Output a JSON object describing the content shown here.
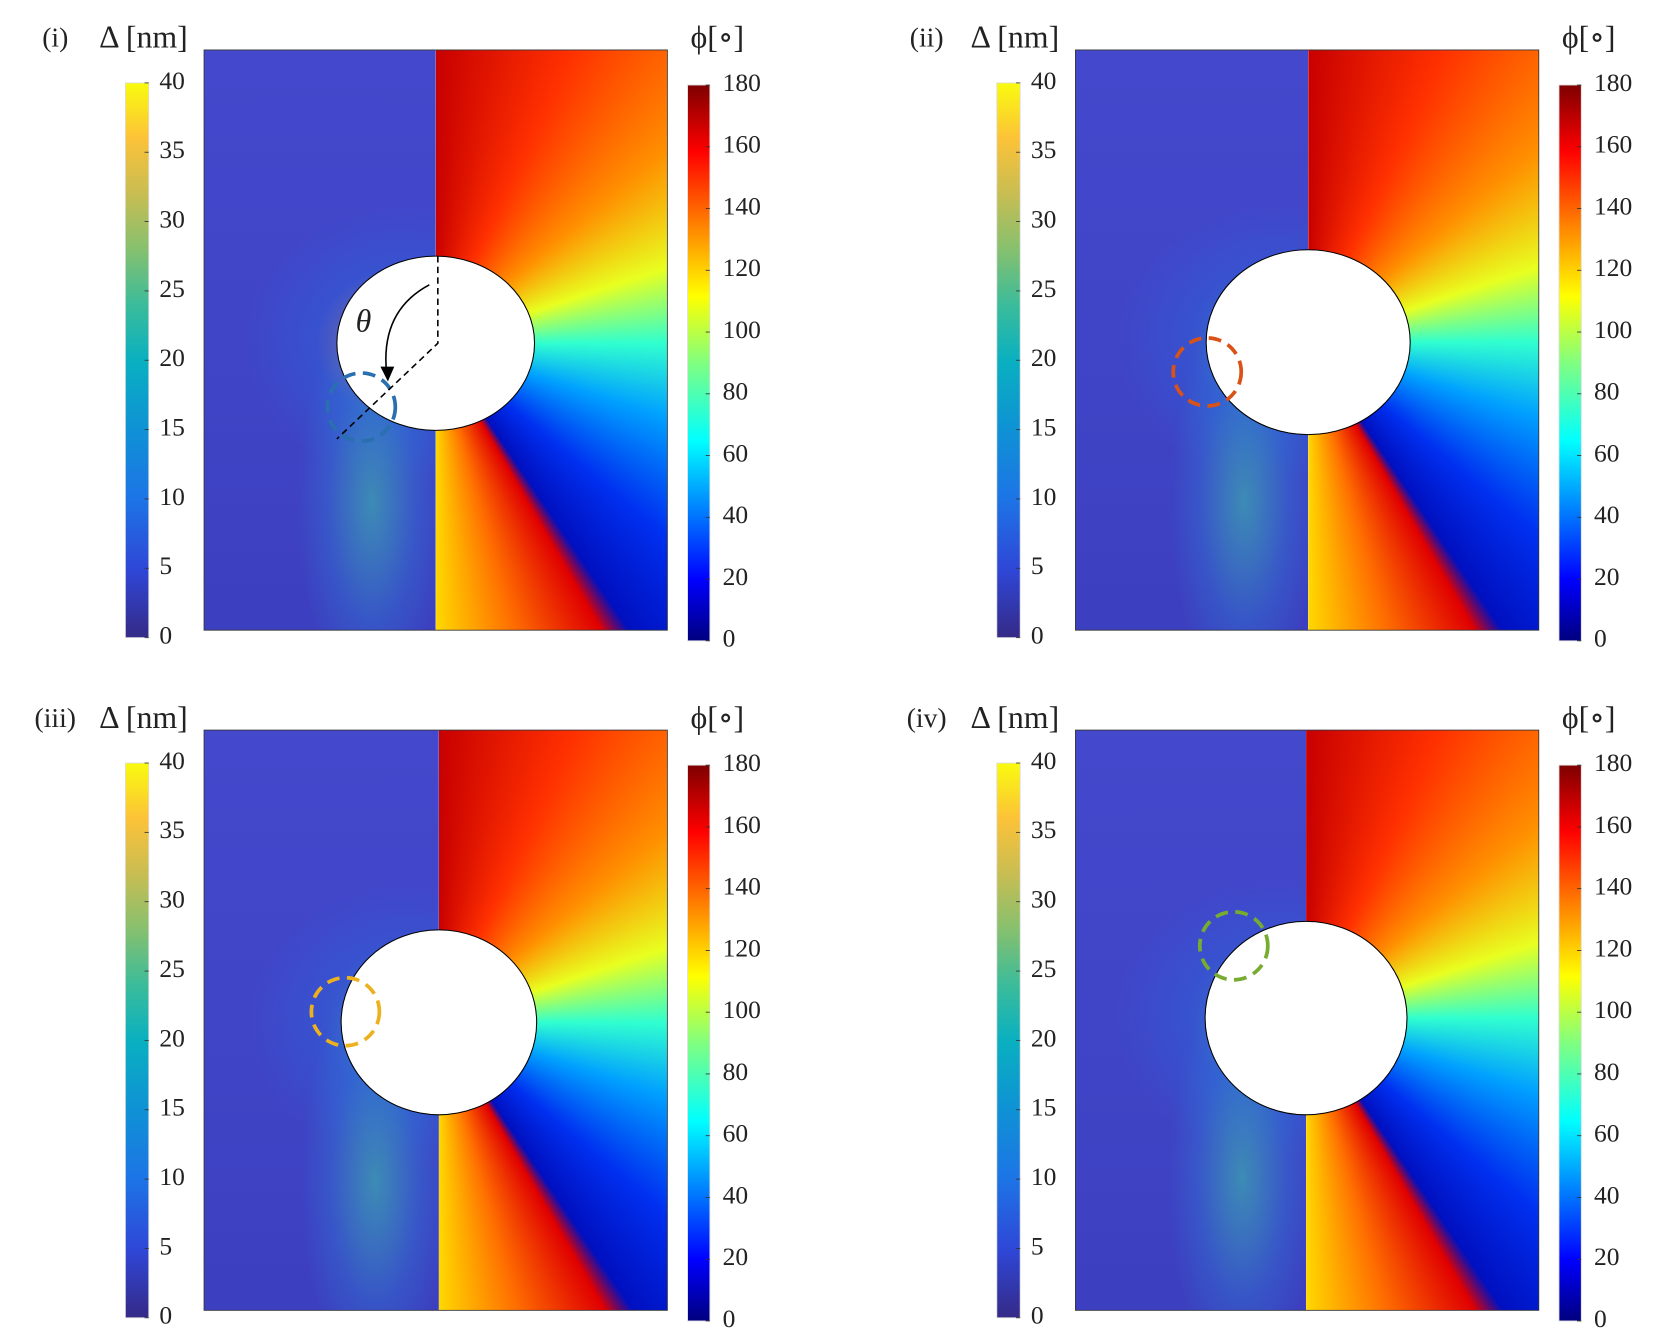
{
  "chart_data": [
    {
      "type": "heatmap",
      "label": "(i)",
      "annotation": "θ",
      "marker_color": "#2a6fb0",
      "colorbars": [
        {
          "title": "Δ [nm]",
          "colormap": "parula",
          "lim": [
            0,
            40
          ],
          "ticks": [
            0,
            5,
            10,
            15,
            20,
            25,
            30,
            35,
            40
          ]
        },
        {
          "title": "ϕ[∘]",
          "colormap": "jet",
          "lim": [
            0,
            180
          ],
          "ticks": [
            0,
            20,
            40,
            60,
            80,
            100,
            120,
            140,
            160,
            180
          ]
        }
      ]
    },
    {
      "type": "heatmap",
      "label": "(ii)",
      "marker_color": "#d95319",
      "colorbars": [
        {
          "title": "Δ [nm]",
          "colormap": "parula",
          "lim": [
            0,
            40
          ],
          "ticks": [
            0,
            5,
            10,
            15,
            20,
            25,
            30,
            35,
            40
          ]
        },
        {
          "title": "ϕ[∘]",
          "colormap": "jet",
          "lim": [
            0,
            180
          ],
          "ticks": [
            0,
            20,
            40,
            60,
            80,
            100,
            120,
            140,
            160,
            180
          ]
        }
      ]
    },
    {
      "type": "heatmap",
      "label": "(iii)",
      "marker_color": "#edb120",
      "colorbars": [
        {
          "title": "Δ [nm]",
          "colormap": "parula",
          "lim": [
            0,
            40
          ],
          "ticks": [
            0,
            5,
            10,
            15,
            20,
            25,
            30,
            35,
            40
          ]
        },
        {
          "title": "ϕ[∘]",
          "colormap": "jet",
          "lim": [
            0,
            180
          ],
          "ticks": [
            0,
            20,
            40,
            60,
            80,
            100,
            120,
            140,
            160,
            180
          ]
        }
      ]
    },
    {
      "type": "heatmap",
      "label": "(iv)",
      "marker_color": "#77ac30",
      "colorbars": [
        {
          "title": "Δ [nm]",
          "colormap": "parula",
          "lim": [
            0,
            40
          ],
          "ticks": [
            0,
            5,
            10,
            15,
            20,
            25,
            30,
            35,
            40
          ]
        },
        {
          "title": "ϕ[∘]",
          "colormap": "jet",
          "lim": [
            0,
            180
          ],
          "ticks": [
            0,
            20,
            40,
            60,
            80,
            100,
            120,
            140,
            160,
            180
          ]
        }
      ]
    }
  ]
}
